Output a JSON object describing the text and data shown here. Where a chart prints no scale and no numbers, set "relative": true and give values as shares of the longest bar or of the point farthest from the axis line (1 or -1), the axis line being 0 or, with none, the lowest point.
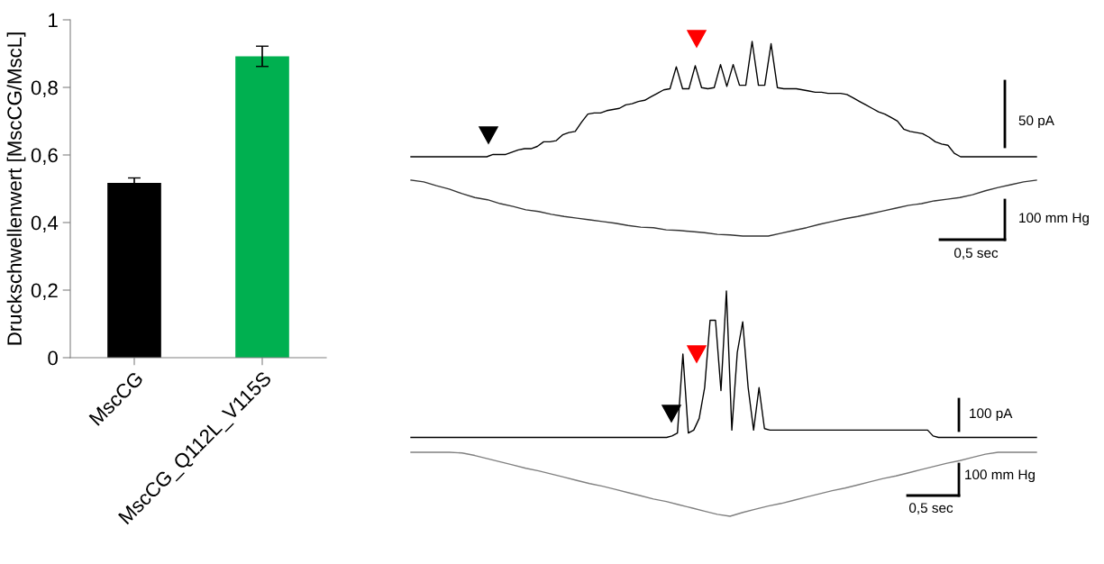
{
  "chart_data": [
    {
      "type": "bar",
      "categories": [
        "MscCG",
        "MscCG_Q112L_V115S"
      ],
      "values": [
        0.517,
        0.892
      ],
      "colors": [
        "#000000",
        "#00b050"
      ],
      "errors": [
        0.015,
        0.03
      ],
      "ylabel": "Druckschwellenwert [MscCG/MscL]",
      "ylim": [
        0,
        1
      ],
      "yticks": [
        0,
        {
          "value": 0.2,
          "label": "0,2"
        },
        {
          "value": 0.4,
          "label": "0,4"
        },
        {
          "value": 0.6,
          "label": "0,6"
        },
        {
          "value": 0.8,
          "label": "0,8"
        },
        1
      ]
    },
    {
      "type": "line",
      "relative": true,
      "annotations": [
        "50 pA"
      ],
      "categories": [
        null,
        null,
        null,
        null,
        null,
        null,
        null,
        null,
        null,
        null,
        null,
        null,
        null,
        null,
        null,
        null,
        null,
        null,
        null,
        null,
        null,
        null,
        null,
        null,
        null,
        null,
        null,
        null,
        null,
        null,
        null,
        null,
        null,
        null,
        null,
        null,
        null,
        null,
        null,
        null,
        null,
        null,
        null,
        null,
        null,
        null,
        null,
        null,
        null,
        null,
        null,
        null,
        null,
        null,
        null,
        null,
        null,
        null,
        null,
        null,
        null,
        null,
        null,
        null,
        null,
        null,
        null,
        null,
        null,
        null,
        null,
        null,
        null,
        null,
        null,
        null,
        null,
        null,
        null,
        null,
        null,
        null,
        null,
        null,
        null,
        null,
        null,
        null,
        null,
        null,
        null,
        null,
        null,
        null,
        null,
        null,
        null,
        null,
        null,
        null
      ],
      "series": [
        {
          "color": "#000000",
          "values": [
            0,
            0,
            0,
            0,
            0,
            0,
            0,
            0,
            0,
            0,
            0,
            0,
            0,
            0.02,
            0.02,
            0.02,
            0.04,
            0.06,
            0.07,
            0.07,
            0.09,
            0.13,
            0.13,
            0.14,
            0.19,
            0.21,
            0.22,
            0.3,
            0.37,
            0.38,
            0.38,
            0.4,
            0.41,
            0.42,
            0.45,
            0.46,
            0.48,
            0.49,
            0.52,
            0.55,
            0.58,
            0.59,
            0.78,
            0.59,
            0.59,
            0.79,
            0.6,
            0.59,
            0.6,
            0.8,
            0.61,
            0.8,
            0.62,
            0.62,
            1.0,
            0.62,
            0.62,
            0.98,
            0.6,
            0.59,
            0.59,
            0.59,
            0.58,
            0.57,
            0.56,
            0.56,
            0.55,
            0.55,
            0.55,
            0.54,
            0.51,
            0.48,
            0.45,
            0.42,
            0.39,
            0.37,
            0.34,
            0.31,
            0.24,
            0.22,
            0.21,
            0.2,
            0.17,
            0.13,
            0.11,
            0.1,
            0.03,
            0,
            0,
            0,
            0,
            0,
            0,
            0,
            0,
            0,
            0,
            0,
            0,
            0
          ]
        }
      ]
    },
    {
      "type": "line",
      "relative": true,
      "annotations": [
        "100 mm Hg",
        "0,5 sec"
      ],
      "categories": [
        null,
        null,
        null,
        null,
        null,
        null,
        null,
        null,
        null,
        null,
        null,
        null,
        null,
        null,
        null,
        null,
        null,
        null,
        null,
        null,
        null,
        null,
        null,
        null,
        null,
        null,
        null,
        null,
        null,
        null,
        null,
        null,
        null,
        null,
        null,
        null,
        null,
        null,
        null,
        null,
        null,
        null,
        null,
        null,
        null,
        null,
        null,
        null,
        null,
        null
      ],
      "series": [
        {
          "color": "#333333",
          "values": [
            1.0,
            0.97,
            0.9,
            0.84,
            0.76,
            0.69,
            0.65,
            0.58,
            0.53,
            0.47,
            0.44,
            0.39,
            0.35,
            0.32,
            0.29,
            0.26,
            0.23,
            0.19,
            0.16,
            0.15,
            0.11,
            0.1,
            0.08,
            0.06,
            0.03,
            0.02,
            0,
            0,
            0,
            0.05,
            0.1,
            0.15,
            0.21,
            0.26,
            0.31,
            0.35,
            0.4,
            0.45,
            0.5,
            0.55,
            0.58,
            0.63,
            0.66,
            0.69,
            0.74,
            0.81,
            0.87,
            0.92,
            0.97,
            1.0
          ]
        }
      ]
    },
    {
      "type": "line",
      "relative": true,
      "annotations": [
        "100 pA"
      ],
      "categories": [
        null,
        null,
        null,
        null,
        null,
        null,
        null,
        null,
        null,
        null,
        null,
        null,
        null,
        null,
        null,
        null,
        null,
        null,
        null,
        null,
        null,
        null,
        null,
        null,
        null,
        null,
        null,
        null,
        null,
        null,
        null,
        null,
        null,
        null,
        null,
        null,
        null,
        null,
        null,
        null,
        null,
        null,
        null,
        null,
        null,
        null,
        null,
        null,
        null,
        null,
        null,
        null,
        null,
        null,
        null,
        null,
        null,
        null,
        null,
        null,
        null,
        null,
        null,
        null,
        null,
        null,
        null,
        null,
        null,
        null,
        null,
        null,
        null,
        null,
        null,
        null,
        null,
        null,
        null,
        null,
        null,
        null,
        null,
        null,
        null,
        null,
        null,
        null,
        null,
        null,
        null,
        null,
        null,
        null,
        null,
        null,
        null,
        null,
        null,
        null,
        null,
        null,
        null,
        null,
        null,
        null,
        null,
        null,
        null,
        null,
        null,
        null,
        null,
        null,
        null,
        null
      ],
      "series": [
        {
          "color": "#000000",
          "values": [
            0,
            0,
            0,
            0,
            0,
            0,
            0,
            0,
            0,
            0,
            0,
            0,
            0,
            0,
            0,
            0,
            0,
            0,
            0,
            0,
            0,
            0,
            0,
            0,
            0,
            0,
            0,
            0,
            0,
            0,
            0,
            0,
            0,
            0,
            0,
            0,
            0,
            0,
            0,
            0,
            0,
            0,
            0,
            0,
            0,
            0,
            0,
            0,
            0.01,
            0.03,
            0.57,
            0.03,
            0.05,
            0.13,
            0.34,
            0.8,
            0.8,
            0.32,
            1.0,
            0.05,
            0.58,
            0.79,
            0.34,
            0.05,
            0.34,
            0.06,
            0.05,
            0.05,
            0.05,
            0.05,
            0.05,
            0.05,
            0.05,
            0.05,
            0.05,
            0.05,
            0.05,
            0.05,
            0.05,
            0.05,
            0.05,
            0.05,
            0.05,
            0.05,
            0.05,
            0.05,
            0.05,
            0.05,
            0.05,
            0.05,
            0.05,
            0.05,
            0.05,
            0.05,
            0.05,
            0.05,
            0.01,
            0,
            0,
            0,
            0,
            0,
            0,
            0,
            0,
            0,
            0,
            0,
            0,
            0,
            0,
            0,
            0,
            0,
            0,
            0
          ]
        }
      ]
    },
    {
      "type": "line",
      "relative": true,
      "annotations": [
        "100 mm Hg",
        "0,5 sec"
      ],
      "categories": [
        null,
        null,
        null,
        null,
        null,
        null,
        null,
        null,
        null,
        null,
        null,
        null,
        null,
        null,
        null,
        null,
        null,
        null,
        null,
        null,
        null,
        null,
        null,
        null,
        null,
        null,
        null,
        null,
        null,
        null,
        null,
        null,
        null,
        null,
        null,
        null,
        null,
        null,
        null,
        null,
        null,
        null,
        null,
        null,
        null,
        null,
        null,
        null,
        null,
        null
      ],
      "series": [
        {
          "color": "#808080",
          "values": [
            1,
            1,
            1,
            1,
            0.99,
            0.95,
            0.9,
            0.85,
            0.8,
            0.75,
            0.71,
            0.66,
            0.61,
            0.56,
            0.51,
            0.47,
            0.42,
            0.37,
            0.32,
            0.27,
            0.23,
            0.18,
            0.13,
            0.08,
            0.03,
            0,
            0.06,
            0.11,
            0.16,
            0.2,
            0.25,
            0.3,
            0.35,
            0.4,
            0.44,
            0.49,
            0.54,
            0.59,
            0.63,
            0.68,
            0.73,
            0.78,
            0.83,
            0.87,
            0.92,
            0.97,
            1,
            1,
            1,
            1
          ]
        }
      ]
    }
  ]
}
